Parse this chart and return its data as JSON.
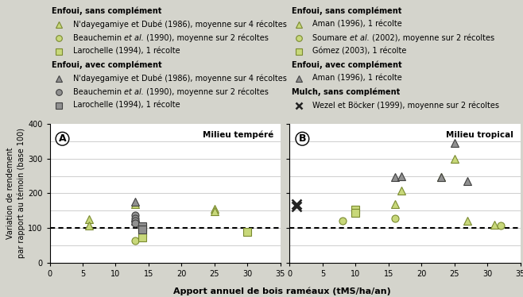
{
  "panel_A": {
    "title": "Milieu tempéré",
    "label": "A",
    "series": [
      {
        "label": "N'dayegamiye et Dubé (1986), moyenne sur 4 récoltes",
        "group": "Enfoui, sans complément",
        "marker": "^",
        "color": "#c8d87a",
        "mec": "#7a8a30",
        "x": [
          6,
          6,
          13,
          25,
          25
        ],
        "y": [
          125,
          108,
          170,
          155,
          148
        ]
      },
      {
        "label": "Beauchemin et al. (1990), moyenne sur 2 récoltes",
        "group": "Enfoui, sans complément",
        "marker": "o",
        "color": "#c8d87a",
        "mec": "#7a8a30",
        "x": [
          13
        ],
        "y": [
          63
        ]
      },
      {
        "label": "Larochelle (1994), 1 récolte",
        "group": "Enfoui, sans complément",
        "marker": "s",
        "color": "#c8d87a",
        "mec": "#7a8a30",
        "x": [
          14,
          14,
          14,
          30
        ],
        "y": [
          100,
          87,
          73,
          90
        ]
      },
      {
        "label": "N'dayegamiye et Dubé (1986), moyenne sur 4 récoltes",
        "group": "Enfoui, avec complément",
        "marker": "^",
        "color": "#909090",
        "mec": "#404040",
        "x": [
          13,
          13,
          13
        ],
        "y": [
          175,
          130,
          120
        ]
      },
      {
        "label": "Beauchemin et al. (1990), moyenne sur 2 récoltes",
        "group": "Enfoui, avec complément",
        "marker": "o",
        "color": "#909090",
        "mec": "#404040",
        "x": [
          13,
          13,
          13,
          13
        ],
        "y": [
          138,
          128,
          122,
          115
        ]
      },
      {
        "label": "Larochelle (1994), 1 récolte",
        "group": "Enfoui, avec complément",
        "marker": "s",
        "color": "#909090",
        "mec": "#404040",
        "x": [
          14,
          14
        ],
        "y": [
          105,
          95
        ]
      }
    ]
  },
  "panel_B": {
    "title": "Milieu tropical",
    "label": "B",
    "series": [
      {
        "label": "Aman (1996), 1 récolte",
        "group": "Enfoui, sans complément",
        "marker": "^",
        "color": "#c8d87a",
        "mec": "#7a8a30",
        "x": [
          16,
          17,
          23,
          25,
          27,
          31
        ],
        "y": [
          170,
          208,
          248,
          300,
          120,
          110
        ]
      },
      {
        "label": "Soumare et al. (2002), moyenne sur 2 récoltes",
        "group": "Enfoui, sans complément",
        "marker": "o",
        "color": "#c8d87a",
        "mec": "#7a8a30",
        "x": [
          8,
          16,
          32
        ],
        "y": [
          120,
          128,
          108
        ]
      },
      {
        "label": "Gómez (2003), 1 récolte",
        "group": "Enfoui, sans complément",
        "marker": "s",
        "color": "#c8d87a",
        "mec": "#7a8a30",
        "x": [
          10,
          10
        ],
        "y": [
          152,
          143
        ]
      },
      {
        "label": "Aman (1996), 1 récolte",
        "group": "Enfoui, avec complément",
        "marker": "^",
        "color": "#909090",
        "mec": "#404040",
        "x": [
          16,
          17,
          23,
          25,
          27
        ],
        "y": [
          248,
          250,
          248,
          345,
          235
        ]
      },
      {
        "label": "Wezel et Böcker (1999), moyenne sur 2 récoltes",
        "group": "Mulch, sans complément",
        "marker": "x",
        "color": "#222222",
        "mec": "#222222",
        "x": [
          1,
          1
        ],
        "y": [
          170,
          162
        ]
      }
    ]
  },
  "xlim": [
    0,
    35
  ],
  "ylim": [
    0,
    400
  ],
  "xticks": [
    0,
    5,
    10,
    15,
    20,
    25,
    30,
    35
  ],
  "yticks": [
    0,
    100,
    200,
    300,
    400
  ],
  "xlabel": "Apport annuel de bois raméaux (tMS/ha/an)",
  "ylabel": "Variation de rendement\npar rapport au témoin (base 100)",
  "bg_color": "#d4d4cc",
  "legend_left": [
    {
      "type": "header",
      "text": "Enfoui, sans complément"
    },
    {
      "type": "item",
      "marker": "^",
      "color": "#c8d87a",
      "mec": "#7a8a30",
      "pre": "N'dayegamiye et Dubé (1986), moyenne sur 4 récoltes",
      "italic": ""
    },
    {
      "type": "item",
      "marker": "o",
      "color": "#c8d87a",
      "mec": "#7a8a30",
      "pre": "Beauchemin ",
      "italic": "et al.",
      "post": " (1990), moyenne sur 2 récoltes"
    },
    {
      "type": "item",
      "marker": "s",
      "color": "#c8d87a",
      "mec": "#7a8a30",
      "pre": "Larochelle (1994), 1 récolte",
      "italic": ""
    },
    {
      "type": "header",
      "text": "Enfoui, avec complément"
    },
    {
      "type": "item",
      "marker": "^",
      "color": "#909090",
      "mec": "#404040",
      "pre": "N'dayegamiye et Dubé (1986), moyenne sur 4 récoltes",
      "italic": ""
    },
    {
      "type": "item",
      "marker": "o",
      "color": "#909090",
      "mec": "#404040",
      "pre": "Beauchemin ",
      "italic": "et al.",
      "post": " (1990), moyenne sur 2 récoltes"
    },
    {
      "type": "item",
      "marker": "s",
      "color": "#909090",
      "mec": "#404040",
      "pre": "Larochelle (1994), 1 récolte",
      "italic": ""
    }
  ],
  "legend_right": [
    {
      "type": "header",
      "text": "Enfoui, sans complément"
    },
    {
      "type": "item",
      "marker": "^",
      "color": "#c8d87a",
      "mec": "#7a8a30",
      "pre": "Aman (1996), 1 récolte",
      "italic": ""
    },
    {
      "type": "item",
      "marker": "o",
      "color": "#c8d87a",
      "mec": "#7a8a30",
      "pre": "Soumare ",
      "italic": "et al.",
      "post": " (2002), moyenne sur 2 récoltes"
    },
    {
      "type": "item",
      "marker": "s",
      "color": "#c8d87a",
      "mec": "#7a8a30",
      "pre": "Gómez (2003), 1 récolte",
      "italic": ""
    },
    {
      "type": "header",
      "text": "Enfoui, avec complément"
    },
    {
      "type": "item",
      "marker": "^",
      "color": "#909090",
      "mec": "#404040",
      "pre": "Aman (1996), 1 récolte",
      "italic": ""
    },
    {
      "type": "header",
      "text": "Mulch, sans complément"
    },
    {
      "type": "item",
      "marker": "x",
      "color": "#222222",
      "mec": "#222222",
      "pre": "Wezel et Böcker (1999), moyenne sur 2 récoltes",
      "italic": ""
    }
  ]
}
